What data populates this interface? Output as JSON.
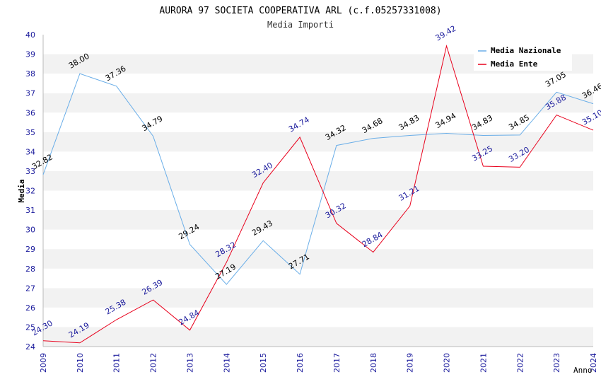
{
  "chart_data": {
    "type": "line",
    "title": "AURORA 97 SOCIETA COOPERATIVA ARL (c.f.05257331008)",
    "subtitle": "Media Importi",
    "xlabel": "Anno",
    "ylabel": "Media",
    "ylim": [
      24,
      40
    ],
    "yticks": [
      "24",
      "25",
      "26",
      "27",
      "28",
      "29",
      "30",
      "31",
      "32",
      "33",
      "34",
      "35",
      "36",
      "37",
      "38",
      "39",
      "40"
    ],
    "categories": [
      "2009",
      "2010",
      "2011",
      "2012",
      "2013",
      "2014",
      "2015",
      "2016",
      "2017",
      "2018",
      "2019",
      "2020",
      "2021",
      "2022",
      "2023",
      "2024"
    ],
    "series": [
      {
        "name": "Media Nazionale",
        "color": "#6aaee8",
        "label_color": "#000000",
        "values": [
          32.82,
          38.0,
          37.36,
          34.79,
          29.24,
          27.19,
          29.43,
          27.71,
          34.32,
          34.68,
          34.83,
          34.94,
          34.83,
          34.85,
          37.05,
          36.46
        ],
        "labels": [
          "32.82",
          "38.00",
          "37.36",
          "34.79",
          "29.24",
          "27.19",
          "29.43",
          "27.71",
          "34.32",
          "34.68",
          "34.83",
          "34.94",
          "34.83",
          "34.85",
          "37.05",
          "36.46"
        ]
      },
      {
        "name": "Media Ente",
        "color": "#e8001c",
        "label_color": "#1a1a9c",
        "values": [
          24.3,
          24.19,
          25.38,
          26.39,
          24.84,
          28.32,
          32.4,
          34.74,
          30.32,
          28.84,
          31.21,
          39.42,
          33.25,
          33.2,
          35.88,
          35.1
        ],
        "labels": [
          "24.30",
          "24.19",
          "25.38",
          "26.39",
          "24.84",
          "28.32",
          "32.40",
          "34.74",
          "30.32",
          "28.84",
          "31.21",
          "39.42",
          "33.25",
          "33.20",
          "35.88",
          "35.10"
        ]
      }
    ],
    "grid": true,
    "legend_position": "top-right",
    "colors": {
      "tick_text": "#1a1a9c",
      "band": "#f2f2f2",
      "axis": "#bbbbbb"
    }
  }
}
